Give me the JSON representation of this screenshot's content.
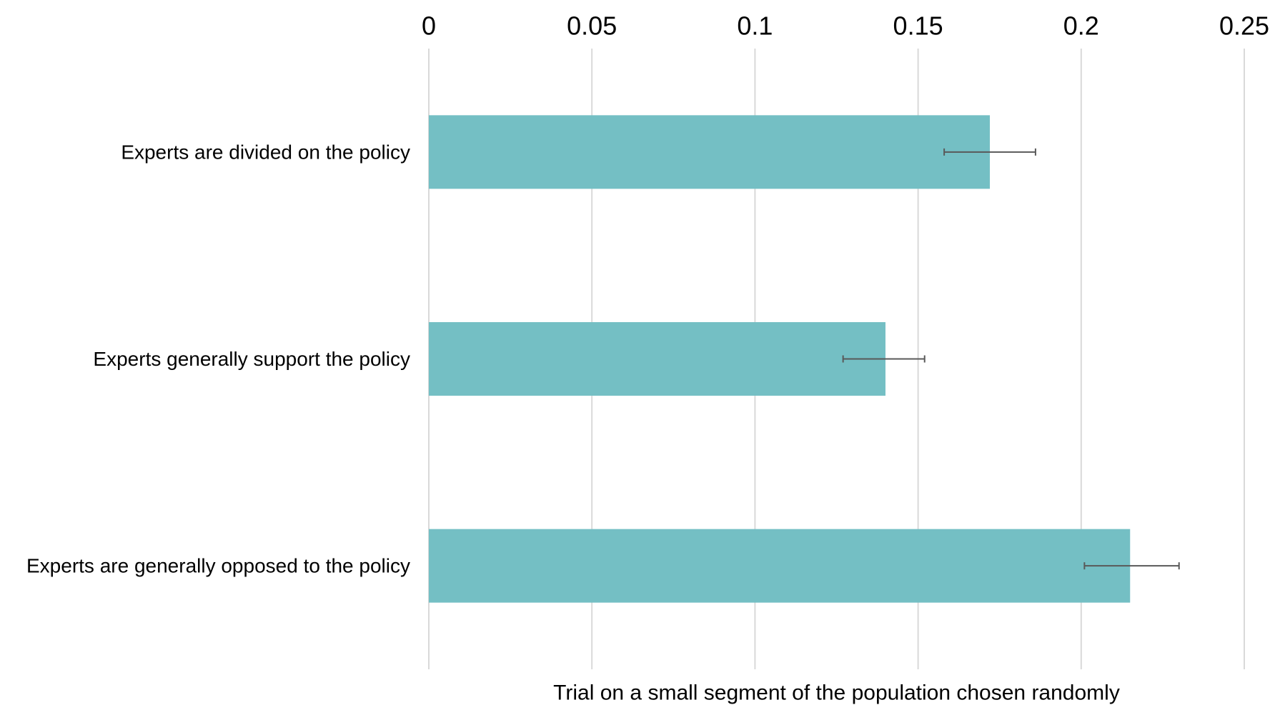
{
  "chart_data": {
    "type": "bar",
    "orientation": "horizontal",
    "categories": [
      "Experts are divided on the policy",
      "Experts generally support the policy",
      "Experts are generally opposed to the policy"
    ],
    "series": [
      {
        "values": [
          0.172,
          0.14,
          0.215
        ],
        "error_low": [
          0.158,
          0.127,
          0.201
        ],
        "error_high": [
          0.186,
          0.152,
          0.23
        ]
      }
    ],
    "xlim": [
      0,
      0.25
    ],
    "x_ticks": [
      0,
      0.05,
      0.1,
      0.15,
      0.2,
      0.25
    ],
    "x_tick_labels": [
      "0",
      "0.05",
      "0.1",
      "0.15",
      "0.2",
      "0.25"
    ],
    "xlabel": "Trial on a small segment of the population chosen randomly",
    "x_axis_position": "top",
    "grid": true,
    "legend": false,
    "colors": {
      "bar": "#74bfc4",
      "grid": "#d9d9d9",
      "error_bar": "#595959"
    }
  }
}
